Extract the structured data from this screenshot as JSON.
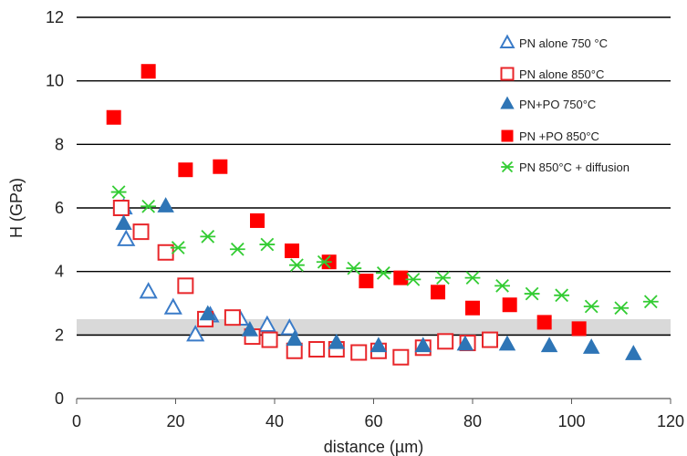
{
  "chart_data": {
    "type": "scatter",
    "title": "",
    "xlabel": "distance (µm)",
    "ylabel": "H (GPa)",
    "xlim": [
      0,
      120
    ],
    "ylim": [
      0,
      12
    ],
    "x_ticks": [
      "0",
      "20",
      "40",
      "60",
      "80",
      "100",
      "120"
    ],
    "y_ticks": [
      "0",
      "2",
      "4",
      "6",
      "8",
      "10",
      "12"
    ],
    "grid": "horizontal",
    "legend_position": "top-right",
    "band": {
      "y_min": 1.95,
      "y_max": 2.5,
      "line": 2.0,
      "color": "#d9d9d9",
      "line_color": "#a6a6a6"
    },
    "series": [
      {
        "name": "PN alone 750 °C",
        "marker": "triangle-open",
        "color": "#3a7bc8",
        "points": [
          [
            9.5,
            6.0
          ],
          [
            10,
            5.0
          ],
          [
            14.5,
            3.35
          ],
          [
            19.5,
            2.85
          ],
          [
            24,
            2.0
          ],
          [
            27,
            2.6
          ],
          [
            33,
            2.5
          ],
          [
            38.5,
            2.3
          ],
          [
            43,
            2.2
          ]
        ]
      },
      {
        "name": "PN alone 850°C",
        "marker": "square-open",
        "color": "#e8262a",
        "points": [
          [
            9,
            6.0
          ],
          [
            13,
            5.25
          ],
          [
            18,
            4.6
          ],
          [
            22,
            3.55
          ],
          [
            26,
            2.5
          ],
          [
            31.5,
            2.55
          ],
          [
            35.5,
            1.95
          ],
          [
            39,
            1.85
          ],
          [
            44,
            1.5
          ],
          [
            48.5,
            1.55
          ],
          [
            52.5,
            1.55
          ],
          [
            57,
            1.45
          ],
          [
            61,
            1.5
          ],
          [
            65.5,
            1.3
          ],
          [
            70,
            1.6
          ],
          [
            74.5,
            1.8
          ],
          [
            79,
            1.75
          ],
          [
            83.5,
            1.85
          ]
        ]
      },
      {
        "name": "PN+PO 750°C",
        "marker": "triangle-filled",
        "color": "#2e75b6",
        "points": [
          [
            9.5,
            5.5
          ],
          [
            18,
            6.05
          ],
          [
            26.5,
            2.65
          ],
          [
            35,
            2.15
          ],
          [
            44,
            1.85
          ],
          [
            52.5,
            1.75
          ],
          [
            61,
            1.65
          ],
          [
            70,
            1.65
          ],
          [
            78.5,
            1.7
          ],
          [
            87,
            1.7
          ],
          [
            95.5,
            1.65
          ],
          [
            104,
            1.6
          ],
          [
            112.5,
            1.4
          ]
        ]
      },
      {
        "name": "PN +PO 850°C",
        "marker": "square-filled",
        "color": "#ff0000",
        "points": [
          [
            7.5,
            8.85
          ],
          [
            14.5,
            10.3
          ],
          [
            22,
            7.2
          ],
          [
            29,
            7.3
          ],
          [
            36.5,
            5.6
          ],
          [
            43.5,
            4.65
          ],
          [
            51,
            4.3
          ],
          [
            58.5,
            3.7
          ],
          [
            65.5,
            3.8
          ],
          [
            73,
            3.35
          ],
          [
            80,
            2.85
          ],
          [
            87.5,
            2.95
          ],
          [
            94.5,
            2.4
          ],
          [
            101.5,
            2.2
          ]
        ]
      },
      {
        "name": "PN 850°C + diffusion",
        "marker": "star",
        "color": "#33cc33",
        "points": [
          [
            8.5,
            6.5
          ],
          [
            14.5,
            6.05
          ],
          [
            20.5,
            4.75
          ],
          [
            26.5,
            5.1
          ],
          [
            32.5,
            4.7
          ],
          [
            38.5,
            4.85
          ],
          [
            44.5,
            4.2
          ],
          [
            50,
            4.3
          ],
          [
            56,
            4.1
          ],
          [
            62,
            3.95
          ],
          [
            68,
            3.75
          ],
          [
            74,
            3.8
          ],
          [
            80,
            3.8
          ],
          [
            86,
            3.55
          ],
          [
            92,
            3.3
          ],
          [
            98,
            3.25
          ],
          [
            104,
            2.9
          ],
          [
            110,
            2.85
          ],
          [
            116,
            3.05
          ]
        ]
      }
    ]
  }
}
